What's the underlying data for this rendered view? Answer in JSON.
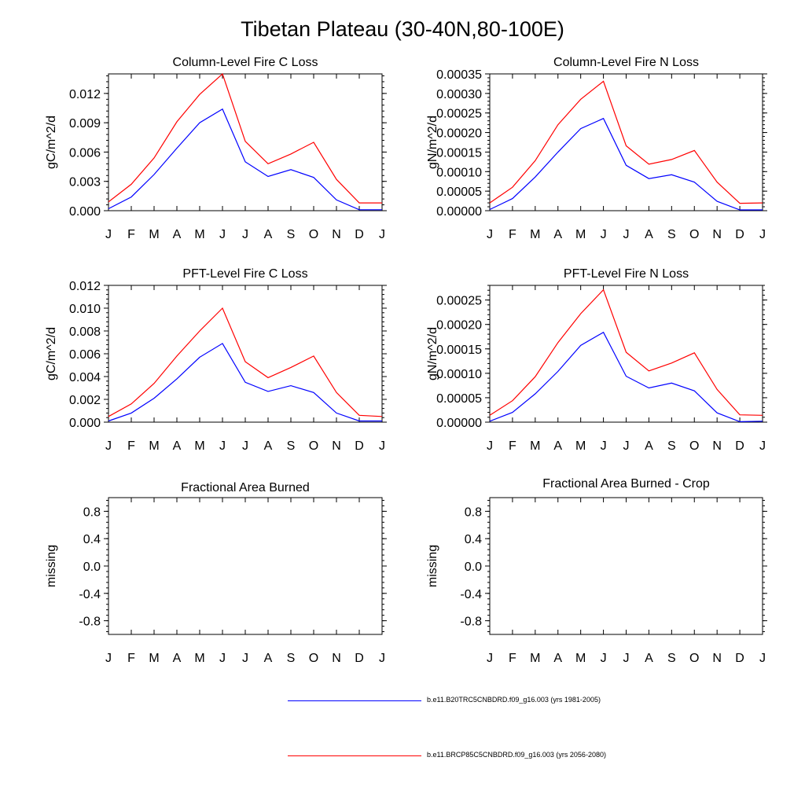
{
  "title": "Tibetan Plateau (30-40N,80-100E)",
  "months": [
    "J",
    "F",
    "M",
    "A",
    "M",
    "J",
    "J",
    "A",
    "S",
    "O",
    "N",
    "D",
    "J"
  ],
  "series_colors": [
    "#0000ff",
    "#ff0000"
  ],
  "legend": [
    {
      "label": "b.e11.B20TRC5CNBDRD.f09_g16.003 (yrs 1981-2005)",
      "color": "#0000ff"
    },
    {
      "label": "b.e11.BRCP85C5CNBDRD.f09_g16.003 (yrs 2056-2080)",
      "color": "#ff0000"
    }
  ],
  "chart_data": [
    {
      "type": "line",
      "title": "Column-Level Fire C Loss",
      "ylabel": "gC/m^2/d",
      "ylim": [
        0,
        0.014
      ],
      "yticks": [
        0.0,
        0.003,
        0.006,
        0.009,
        0.012
      ],
      "ytick_labels": [
        "0.000",
        "0.003",
        "0.006",
        "0.009",
        "0.012"
      ],
      "series": [
        {
          "values": [
            0.0002,
            0.0014,
            0.0037,
            0.0064,
            0.009,
            0.0104,
            0.005,
            0.0035,
            0.0042,
            0.0034,
            0.0011,
            0.0001,
            0.0001
          ]
        },
        {
          "values": [
            0.0009,
            0.0027,
            0.0054,
            0.0091,
            0.0119,
            0.014,
            0.0071,
            0.0048,
            0.0058,
            0.007,
            0.0032,
            0.0008,
            0.0008
          ]
        }
      ]
    },
    {
      "type": "line",
      "title": "Column-Level Fire N Loss",
      "ylabel": "gN/m^2/d",
      "ylim": [
        0,
        0.00035
      ],
      "yticks": [
        0,
        5e-05,
        0.0001,
        0.00015,
        0.0002,
        0.00025,
        0.0003,
        0.00035
      ],
      "ytick_labels": [
        "0.00000",
        "0.00005",
        "0.00010",
        "0.00015",
        "0.00020",
        "0.00025",
        "0.00030",
        "0.00035"
      ],
      "series": [
        {
          "values": [
            3e-06,
            3.1e-05,
            8.6e-05,
            0.00015,
            0.00021,
            0.000236,
            0.000116,
            8.2e-05,
            9.2e-05,
            7.3e-05,
            2.4e-05,
            2e-06,
            2e-06
          ]
        },
        {
          "values": [
            2e-05,
            6e-05,
            0.000128,
            0.00022,
            0.000285,
            0.000331,
            0.000166,
            0.000119,
            0.000131,
            0.000154,
            7.3e-05,
            1.9e-05,
            2e-05
          ]
        }
      ]
    },
    {
      "type": "line",
      "title": "PFT-Level Fire C Loss",
      "ylabel": "gC/m^2/d",
      "ylim": [
        0,
        0.012
      ],
      "yticks": [
        0.0,
        0.002,
        0.004,
        0.006,
        0.008,
        0.01,
        0.012
      ],
      "ytick_labels": [
        "0.000",
        "0.002",
        "0.004",
        "0.006",
        "0.008",
        "0.010",
        "0.012"
      ],
      "series": [
        {
          "values": [
            0.0001,
            0.0008,
            0.0021,
            0.0038,
            0.0057,
            0.0069,
            0.0035,
            0.0027,
            0.0032,
            0.0026,
            0.0008,
            0.0001,
            0.0001
          ]
        },
        {
          "values": [
            0.0005,
            0.0016,
            0.0034,
            0.0058,
            0.008,
            0.01,
            0.0053,
            0.0039,
            0.0048,
            0.0058,
            0.0026,
            0.0006,
            0.0005
          ]
        }
      ]
    },
    {
      "type": "line",
      "title": "PFT-Level Fire N Loss",
      "ylabel": "gN/m^2/d",
      "ylim": [
        0,
        0.00028
      ],
      "yticks": [
        0,
        5e-05,
        0.0001,
        0.00015,
        0.0002,
        0.00025
      ],
      "ytick_labels": [
        "0.00000",
        "0.00005",
        "0.00010",
        "0.00015",
        "0.00020",
        "0.00025"
      ],
      "series": [
        {
          "values": [
            2e-06,
            2e-05,
            5.8e-05,
            0.000104,
            0.000157,
            0.000184,
            9.4e-05,
            7e-05,
            8e-05,
            6.4e-05,
            1.9e-05,
            1e-06,
            2e-06
          ]
        },
        {
          "values": [
            1.4e-05,
            4.4e-05,
            9.3e-05,
            0.000163,
            0.000222,
            0.000271,
            0.000143,
            0.000105,
            0.000121,
            0.000142,
            6.7e-05,
            1.5e-05,
            1.4e-05
          ]
        }
      ]
    },
    {
      "type": "line",
      "title": "Fractional Area Burned",
      "ylabel": "missing",
      "ylim": [
        -1,
        1
      ],
      "yticks": [
        -0.8,
        -0.4,
        0.0,
        0.4,
        0.8
      ],
      "ytick_labels": [
        "-0.8",
        "-0.4",
        "0.0",
        "0.4",
        "0.8"
      ],
      "series": []
    },
    {
      "type": "line",
      "title": "Fractional Area Burned - Crop",
      "ylabel": "missing",
      "ylim": [
        -1,
        1
      ],
      "yticks": [
        -0.8,
        -0.4,
        0.0,
        0.4,
        0.8
      ],
      "ytick_labels": [
        "-0.8",
        "-0.4",
        "0.0",
        "0.4",
        "0.8"
      ],
      "series": []
    }
  ]
}
